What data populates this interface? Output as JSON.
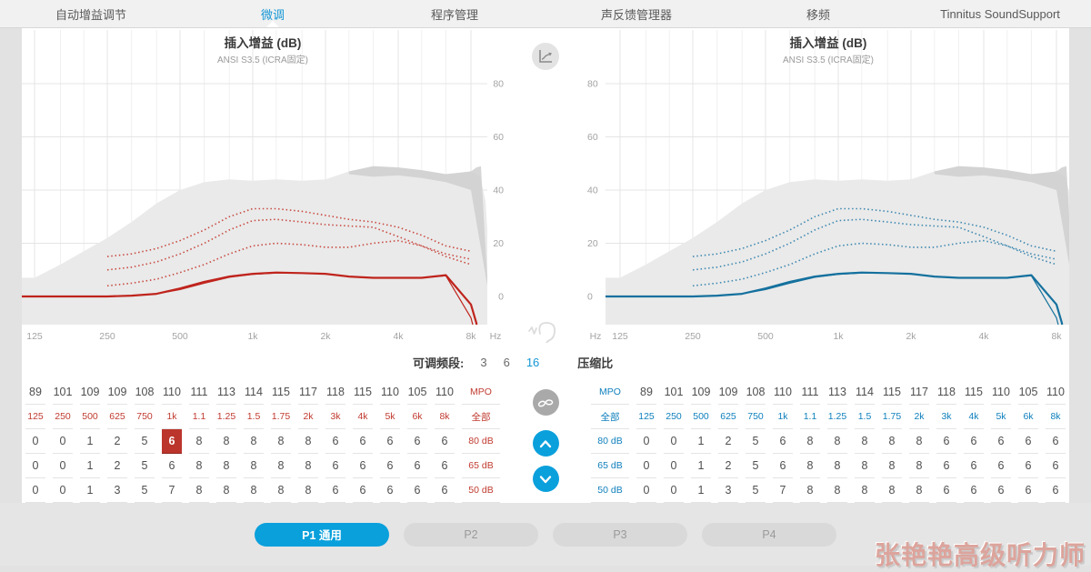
{
  "nav": {
    "tabs": [
      {
        "label": "自动增益调节",
        "active": false
      },
      {
        "label": "微调",
        "active": true
      },
      {
        "label": "程序管理",
        "active": false
      },
      {
        "label": "声反馈管理器",
        "active": false
      },
      {
        "label": "移频",
        "active": false
      },
      {
        "label": "Tinnitus SoundSupport",
        "active": false
      }
    ]
  },
  "charts": {
    "title": "插入增益 (dB)",
    "subtitle": "ANSI S3.5 (ICRA固定)"
  },
  "band": {
    "label": "可调频段:",
    "options": [
      "3",
      "6",
      "16"
    ],
    "selected": "16",
    "compression": "压缩比"
  },
  "tables": {
    "mpo_label": "MPO",
    "all_label": "全部",
    "mpo_values": [
      "89",
      "101",
      "109",
      "109",
      "108",
      "110",
      "111",
      "113",
      "114",
      "115",
      "117",
      "118",
      "115",
      "110",
      "105",
      "110"
    ],
    "frequencies": [
      "125",
      "250",
      "500",
      "625",
      "750",
      "1k",
      "1.1",
      "1.25",
      "1.5",
      "1.75",
      "2k",
      "3k",
      "4k",
      "5k",
      "6k",
      "8k"
    ],
    "gain_rows": [
      {
        "label": "80 dB",
        "values": [
          "0",
          "0",
          "1",
          "2",
          "5",
          "6",
          "8",
          "8",
          "8",
          "8",
          "8",
          "6",
          "6",
          "6",
          "6",
          "6"
        ]
      },
      {
        "label": "65 dB",
        "values": [
          "0",
          "0",
          "1",
          "2",
          "5",
          "6",
          "8",
          "8",
          "8",
          "8",
          "8",
          "6",
          "6",
          "6",
          "6",
          "6"
        ]
      },
      {
        "label": "50 dB",
        "values": [
          "0",
          "0",
          "1",
          "3",
          "5",
          "7",
          "8",
          "8",
          "8",
          "8",
          "8",
          "6",
          "6",
          "6",
          "6",
          "6"
        ]
      }
    ],
    "left_highlight": {
      "row": 0,
      "col": 5
    }
  },
  "icons": {
    "view_toggle": "chart-axes-icon",
    "ear": "ear-sound-icon",
    "binaural_link": "unlink-icon",
    "increase": "chevron-up-icon",
    "decrease": "chevron-down-icon"
  },
  "programs": [
    {
      "label": "P1 通用",
      "active": true
    },
    {
      "label": "P2",
      "active": false
    },
    {
      "label": "P3",
      "active": false
    },
    {
      "label": "P4",
      "active": false
    }
  ],
  "watermark": {
    "text": "张艳艳高级听力师"
  },
  "chart_data": {
    "type": "line",
    "title": "插入增益 (dB)",
    "subtitle": "ANSI S3.5 (ICRA固定)",
    "x_unit": "Hz",
    "y_unit": "dB",
    "x_ticks": [
      "125",
      "250",
      "500",
      "1k",
      "2k",
      "4k",
      "8k"
    ],
    "x_tick_freqs": [
      125,
      250,
      500,
      1000,
      2000,
      4000,
      8000
    ],
    "y_ticks": [
      80,
      60,
      40,
      20,
      0
    ],
    "ylim": [
      -10,
      90
    ],
    "freqs": [
      125,
      160,
      200,
      250,
      315,
      400,
      500,
      630,
      800,
      1000,
      1250,
      1600,
      2000,
      2500,
      3150,
      4000,
      5000,
      6300,
      8000
    ],
    "speech_area_upper": [
      7,
      12,
      17,
      22,
      28,
      35,
      40,
      43,
      44,
      43.5,
      44,
      43.5,
      44,
      47,
      49,
      48.5,
      47.5,
      46,
      47
    ],
    "speech_tail_dx": [
      10,
      16,
      20,
      24
    ],
    "speech_tail_db": [
      45,
      36,
      14,
      -4
    ],
    "dark_area": {
      "freqs": [
        2500,
        3150,
        4000,
        5000,
        6300,
        8000
      ],
      "upper": [
        47,
        49,
        48.5,
        47.5,
        46,
        47
      ],
      "lower": [
        46,
        45,
        45.5,
        44.5,
        43,
        40
      ],
      "tail_dx": [
        6,
        11,
        15,
        19
      ],
      "tail_db": [
        48.5,
        49,
        24,
        2
      ]
    },
    "panels": [
      {
        "side": "left",
        "ear": "right-ear",
        "solid": "#bf241d",
        "dotted": "#c84a41"
      },
      {
        "side": "right",
        "ear": "left-ear",
        "solid": "#15719e",
        "dotted": "#3d88b0"
      }
    ],
    "series": {
      "target_80": [
        null,
        null,
        null,
        15,
        16,
        18,
        21,
        25,
        30,
        33,
        33,
        32,
        30.5,
        29,
        28,
        26,
        23,
        19,
        17
      ],
      "target_65": [
        null,
        null,
        null,
        10,
        11,
        13,
        16,
        20,
        25,
        28.5,
        29,
        28,
        27,
        26.5,
        26,
        22.5,
        19,
        16,
        14
      ],
      "target_50": [
        null,
        null,
        null,
        4,
        5,
        6.5,
        9,
        12,
        16,
        19,
        20,
        19.5,
        18.5,
        18.5,
        20,
        21,
        19,
        15,
        12
      ],
      "gain_a": [
        0,
        0,
        0,
        0,
        0.3,
        1,
        3,
        5.5,
        7.5,
        8.5,
        9,
        8.8,
        8.5,
        7.5,
        7,
        7,
        7,
        8,
        -3
      ],
      "gain_b": [
        0,
        0,
        0,
        0,
        0.3,
        1,
        2.6,
        5,
        7.2,
        8.3,
        8.8,
        8.8,
        8.5,
        7.5,
        7,
        7,
        7,
        7.8,
        -8
      ]
    },
    "gain_tail_dx": [
      6,
      10
    ],
    "gain_tail_a_db": [
      -10,
      -24
    ],
    "gain_tail_b_db": [
      -16,
      -30
    ],
    "colors": {
      "area_light": "#eaeaea",
      "area_dark": "#cfcfcf",
      "grid_major": "#e4e4e4",
      "grid_minor": "#f0f0f0",
      "tick_text": "#a3a3a3"
    }
  }
}
